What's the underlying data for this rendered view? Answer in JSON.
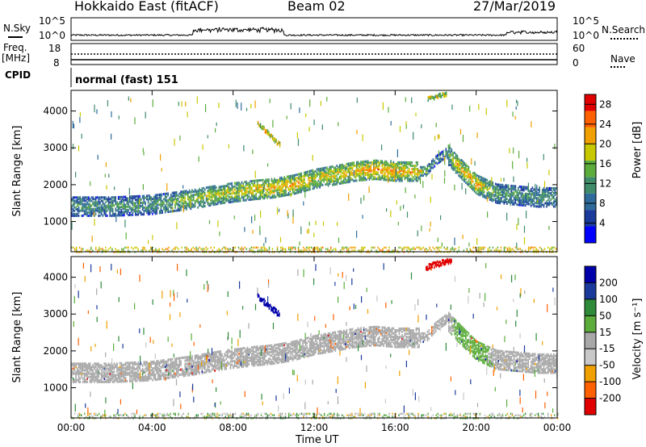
{
  "header": {
    "radar": "Hokkaido East (fitACF)",
    "beam": "Beam 02",
    "date": "27/Mar/2019"
  },
  "side_labels": {
    "nsky": "N.Sky",
    "freq_line1": "Freq.",
    "freq_line2": "[MHz]",
    "cpid": "CPID",
    "nsearch": "N.Search",
    "nave": "Nave"
  },
  "nsky_ticks": [
    "10^5",
    "10^0"
  ],
  "nsearch_ticks": [
    "10^5",
    "10^0"
  ],
  "freq_ticks": [
    "18",
    "8"
  ],
  "nave_ticks": [
    "60",
    "0"
  ],
  "cpid_text": "normal (fast) 151",
  "colors": {
    "power_scale": [
      "#0000ff",
      "#1a3a9c",
      "#2f6b9a",
      "#3f8b6a",
      "#5cad3c",
      "#c8c800",
      "#f0a000",
      "#ff6000",
      "#e00000"
    ],
    "velocity_scale": [
      "#e00000",
      "#ff6000",
      "#f0a000",
      "#c8c8c8",
      "#a8a8a8",
      "#5cad3c",
      "#2f8b3a",
      "#1a3a9c",
      "#0000aa"
    ]
  },
  "chart_data": [
    {
      "type": "heatmap",
      "name": "power",
      "ylabel": "Slant Range [km]",
      "xlabel": "Time UT",
      "x_ticks": [
        "00:00",
        "04:00",
        "08:00",
        "12:00",
        "16:00",
        "20:00",
        "00:00"
      ],
      "x_range_hours": [
        0,
        24
      ],
      "y_ticks": [
        1000,
        2000,
        3000,
        4000
      ],
      "ylim": [
        180,
        4560
      ],
      "colorbar": {
        "label": "Power [dB]",
        "ticks": [
          4,
          8,
          12,
          16,
          20,
          24,
          28
        ],
        "range": [
          0,
          30
        ]
      },
      "echo_band": {
        "hours": [
          0,
          2,
          4,
          6,
          7.5,
          9,
          10,
          11,
          12,
          13,
          14,
          15,
          16,
          17,
          17.5,
          18,
          18.5,
          19,
          20,
          21,
          22,
          23,
          24
        ],
        "range_km": [
          1450,
          1450,
          1500,
          1650,
          1800,
          1900,
          1950,
          2050,
          2200,
          2300,
          2400,
          2450,
          2400,
          2400,
          2400,
          2700,
          2900,
          2600,
          2050,
          1800,
          1750,
          1700,
          1700
        ],
        "power_db": [
          12,
          12,
          12,
          16,
          18,
          20,
          22,
          22,
          20,
          20,
          22,
          24,
          22,
          22,
          16,
          12,
          12,
          20,
          22,
          14,
          12,
          12,
          12
        ]
      },
      "near_range_strip_km": [
        180,
        350
      ]
    },
    {
      "type": "heatmap",
      "name": "velocity",
      "ylabel": "Slant Range [km]",
      "xlabel": "Time UT",
      "x_ticks": [
        "00:00",
        "04:00",
        "08:00",
        "12:00",
        "16:00",
        "20:00",
        "00:00"
      ],
      "x_range_hours": [
        0,
        24
      ],
      "y_ticks": [
        1000,
        2000,
        3000,
        4000
      ],
      "ylim": [
        180,
        4560
      ],
      "colorbar": {
        "label": "Velocity [m s⁻¹]",
        "ticks": [
          200,
          100,
          50,
          15,
          -15,
          -50,
          -100,
          -200
        ],
        "range": [
          -250,
          250
        ]
      },
      "echo_band": {
        "hours": [
          0,
          2,
          4,
          6,
          7.5,
          9,
          10,
          11,
          12,
          13,
          14,
          15,
          16,
          17,
          17.5,
          18,
          18.5,
          19,
          20,
          21,
          22,
          23,
          24
        ],
        "range_km": [
          1450,
          1450,
          1500,
          1650,
          1800,
          1900,
          1950,
          2050,
          2200,
          2300,
          2400,
          2450,
          2400,
          2400,
          2400,
          2700,
          2900,
          2600,
          2050,
          1800,
          1750,
          1700,
          1700
        ],
        "velocity_ms": [
          0,
          0,
          0,
          0,
          0,
          0,
          0,
          0,
          0,
          0,
          0,
          0,
          0,
          0,
          0,
          0,
          0,
          20,
          40,
          0,
          0,
          0,
          0
        ]
      },
      "patches": [
        {
          "hours": [
            9.2,
            10.3
          ],
          "range_km": [
            3500,
            3000
          ],
          "velocity_ms": 250
        },
        {
          "hours": [
            17.5,
            18.8
          ],
          "range_km": [
            4300,
            4500
          ],
          "velocity_ms": -220
        }
      ]
    }
  ]
}
